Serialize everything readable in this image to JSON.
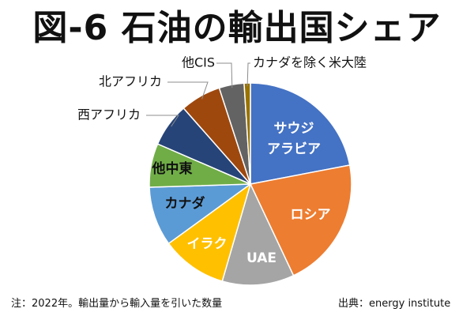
{
  "title": "図-6 石油の輸出国シェア",
  "footnote": "注：2022年。輸出量から輸入量を引いた数量",
  "source_prefix": "出典：",
  "source_name": "energy institute",
  "chart_data": {
    "type": "pie",
    "start_angle_deg": 0,
    "direction": "clockwise",
    "slices": [
      {
        "label": "サウジ\nアラビア",
        "value": 22.0,
        "color": "#4472C4",
        "label_pos": "inside",
        "label_color": "#ffffff"
      },
      {
        "label": "ロシア",
        "value": 21.0,
        "color": "#ED7D31",
        "label_pos": "inside",
        "label_color": "#ffffff"
      },
      {
        "label": "UAE",
        "value": 11.5,
        "color": "#A5A5A5",
        "label_pos": "inside",
        "label_color": "#ffffff"
      },
      {
        "label": "イラク",
        "value": 10.5,
        "color": "#FFC000",
        "label_pos": "inside",
        "label_color": "#ffffff"
      },
      {
        "label": "カナダ",
        "value": 9.5,
        "color": "#5B9BD5",
        "label_pos": "inside",
        "label_color": "#111111"
      },
      {
        "label": "他中東",
        "value": 7.0,
        "color": "#70AD47",
        "label_pos": "inside",
        "label_color": "#111111"
      },
      {
        "label": "西アフリカ",
        "value": 7.0,
        "color": "#264478",
        "label_pos": "outside",
        "label_color": "#111111"
      },
      {
        "label": "北アフリカ",
        "value": 6.5,
        "color": "#9E480E",
        "label_pos": "outside",
        "label_color": "#111111"
      },
      {
        "label": "他CIS",
        "value": 4.0,
        "color": "#636363",
        "label_pos": "outside",
        "label_color": "#111111"
      },
      {
        "label": "カナダを除く米大陸",
        "value": 1.0,
        "color": "#997300",
        "label_pos": "outside",
        "label_color": "#111111"
      }
    ]
  }
}
